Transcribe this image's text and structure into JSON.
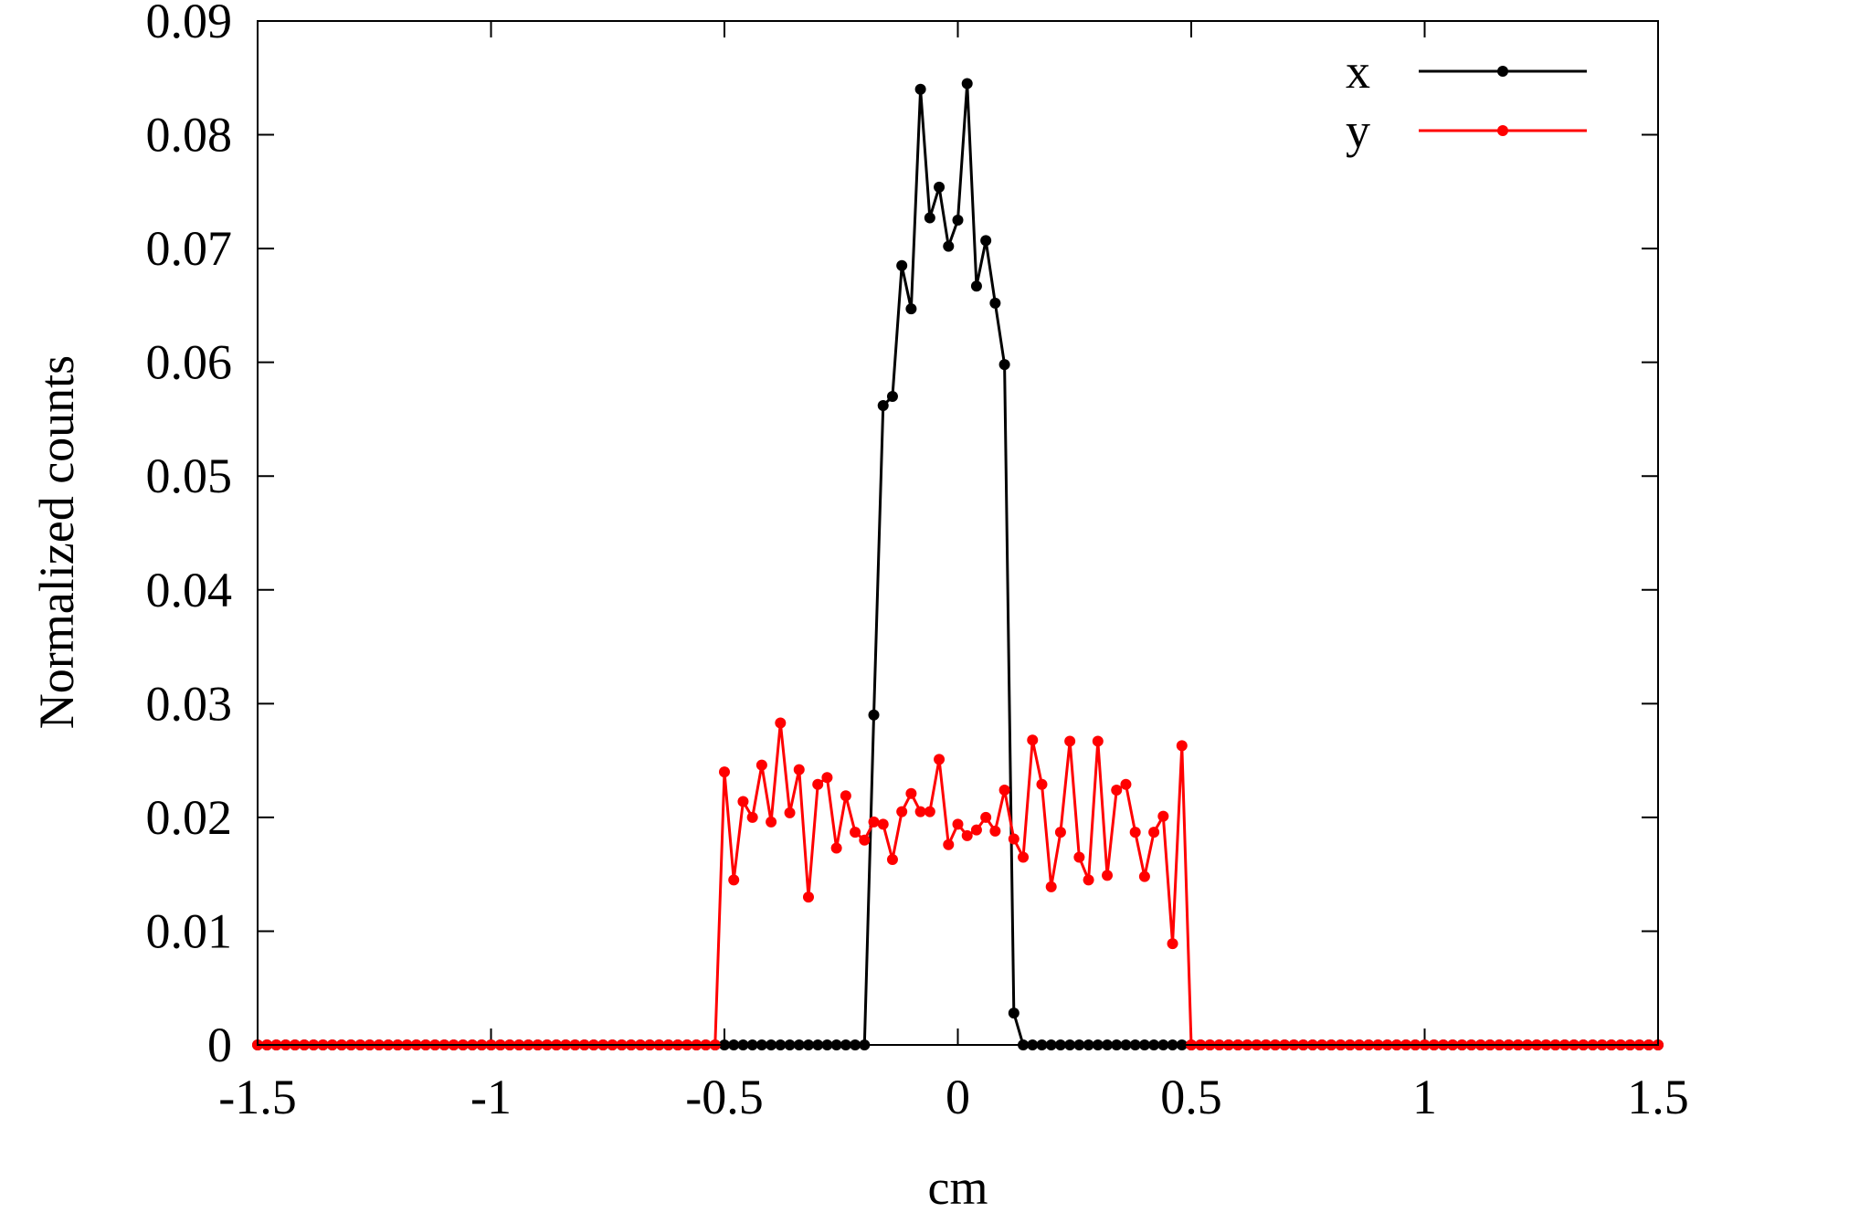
{
  "chart_data": {
    "type": "line",
    "title": "",
    "xlabel": "cm",
    "ylabel": "Normalized counts",
    "xlim": [
      -1.5,
      1.5
    ],
    "ylim": [
      0,
      0.09
    ],
    "xticks": [
      -1.5,
      -1,
      -0.5,
      0,
      0.5,
      1,
      1.5
    ],
    "xtick_labels": [
      "-1.5",
      "-1",
      "-0.5",
      "0",
      "0.5",
      "1",
      "1.5"
    ],
    "yticks": [
      0,
      0.01,
      0.02,
      0.03,
      0.04,
      0.05,
      0.06,
      0.07,
      0.08,
      0.09
    ],
    "ytick_labels": [
      "0",
      "0.01",
      "0.02",
      "0.03",
      "0.04",
      "0.05",
      "0.06",
      "0.07",
      "0.08",
      "0.09"
    ],
    "grid": false,
    "legend_position": "top-right",
    "marker": "circle",
    "series": [
      {
        "name": "x",
        "color": "#000000",
        "points": [
          [
            -0.18,
            0.029
          ],
          [
            -0.16,
            0.0562
          ],
          [
            -0.14,
            0.057
          ],
          [
            -0.12,
            0.0685
          ],
          [
            -0.1,
            0.0647
          ],
          [
            -0.08,
            0.084
          ],
          [
            -0.06,
            0.0727
          ],
          [
            -0.04,
            0.0754
          ],
          [
            -0.02,
            0.0702
          ],
          [
            0.0,
            0.0725
          ],
          [
            0.02,
            0.0845
          ],
          [
            0.04,
            0.0667
          ],
          [
            0.06,
            0.0707
          ],
          [
            0.08,
            0.0652
          ],
          [
            0.1,
            0.0598
          ],
          [
            0.12,
            0.0028
          ]
        ]
      },
      {
        "name": "y",
        "color": "#ff0000",
        "points": [
          [
            -0.5,
            0.024
          ],
          [
            -0.48,
            0.0145
          ],
          [
            -0.46,
            0.0214
          ],
          [
            -0.44,
            0.02
          ],
          [
            -0.42,
            0.0246
          ],
          [
            -0.4,
            0.0196
          ],
          [
            -0.38,
            0.0283
          ],
          [
            -0.36,
            0.0204
          ],
          [
            -0.34,
            0.0242
          ],
          [
            -0.32,
            0.013
          ],
          [
            -0.3,
            0.0229
          ],
          [
            -0.28,
            0.0235
          ],
          [
            -0.26,
            0.0173
          ],
          [
            -0.24,
            0.0219
          ],
          [
            -0.22,
            0.0187
          ],
          [
            -0.2,
            0.018
          ],
          [
            -0.18,
            0.0196
          ],
          [
            -0.16,
            0.0194
          ],
          [
            -0.14,
            0.0163
          ],
          [
            -0.12,
            0.0205
          ],
          [
            -0.1,
            0.0221
          ],
          [
            -0.08,
            0.0205
          ],
          [
            -0.06,
            0.0205
          ],
          [
            -0.04,
            0.0251
          ],
          [
            -0.02,
            0.0176
          ],
          [
            0.0,
            0.0194
          ],
          [
            0.02,
            0.0184
          ],
          [
            0.04,
            0.0189
          ],
          [
            0.06,
            0.02
          ],
          [
            0.08,
            0.0188
          ],
          [
            0.1,
            0.0224
          ],
          [
            0.12,
            0.0181
          ],
          [
            0.14,
            0.0165
          ],
          [
            0.16,
            0.0268
          ],
          [
            0.18,
            0.0229
          ],
          [
            0.2,
            0.0139
          ],
          [
            0.22,
            0.0187
          ],
          [
            0.24,
            0.0267
          ],
          [
            0.26,
            0.0165
          ],
          [
            0.28,
            0.0145
          ],
          [
            0.3,
            0.0267
          ],
          [
            0.32,
            0.0149
          ],
          [
            0.34,
            0.0224
          ],
          [
            0.36,
            0.0229
          ],
          [
            0.38,
            0.0187
          ],
          [
            0.4,
            0.0148
          ],
          [
            0.42,
            0.0187
          ],
          [
            0.44,
            0.0201
          ],
          [
            0.46,
            0.0089
          ],
          [
            0.48,
            0.0263
          ]
        ]
      }
    ],
    "baseline": {
      "value": 0,
      "x_start": -1.5,
      "x_end": 1.5,
      "step": 0.02
    }
  }
}
